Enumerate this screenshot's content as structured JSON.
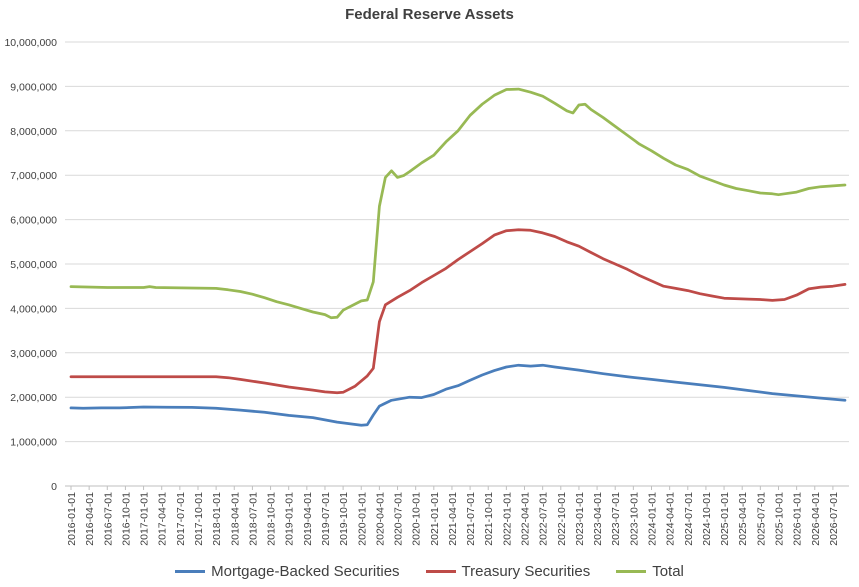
{
  "chart_data": {
    "type": "line",
    "title": "Federal Reserve Assets",
    "xlabel": "",
    "ylabel": "",
    "ylim": [
      0,
      10000000
    ],
    "y_ticks": [
      "0",
      "1,000,000",
      "2,000,000",
      "3,000,000",
      "4,000,000",
      "5,000,000",
      "6,000,000",
      "7,000,000",
      "8,000,000",
      "9,000,000",
      "10,000,000"
    ],
    "x_ticks": [
      "2016-01-01",
      "2016-04-01",
      "2016-07-01",
      "2016-10-01",
      "2017-01-01",
      "2017-04-01",
      "2017-07-01",
      "2017-10-01",
      "2018-01-01",
      "2018-04-01",
      "2018-07-01",
      "2018-10-01",
      "2019-01-01",
      "2019-04-01",
      "2019-07-01",
      "2019-10-01",
      "2020-01-01",
      "2020-04-01",
      "2020-07-01",
      "2020-10-01",
      "2021-01-01",
      "2021-04-01",
      "2021-07-01",
      "2021-10-01",
      "2022-01-01",
      "2022-04-01",
      "2022-07-01",
      "2022-10-01",
      "2023-01-01",
      "2023-04-01",
      "2023-07-01",
      "2023-10-01",
      "2024-01-01",
      "2024-04-01",
      "2024-07-01",
      "2024-10-01",
      "2025-01-01",
      "2025-04-01",
      "2025-07-01",
      "2025-10-01",
      "2026-01-01",
      "2026-04-01",
      "2026-07-01"
    ],
    "grid": true,
    "legend": "bottom",
    "series": [
      {
        "name": "Mortgage-Backed Securities",
        "color": "#4a7ebb",
        "points": [
          [
            0,
            1760000
          ],
          [
            2,
            1750000
          ],
          [
            5,
            1760000
          ],
          [
            8,
            1760000
          ],
          [
            12,
            1780000
          ],
          [
            16,
            1775000
          ],
          [
            20,
            1770000
          ],
          [
            24,
            1750000
          ],
          [
            28,
            1710000
          ],
          [
            32,
            1660000
          ],
          [
            36,
            1590000
          ],
          [
            40,
            1540000
          ],
          [
            44,
            1440000
          ],
          [
            48,
            1370000
          ],
          [
            49,
            1380000
          ],
          [
            50,
            1600000
          ],
          [
            51,
            1800000
          ],
          [
            53,
            1930000
          ],
          [
            56,
            2000000
          ],
          [
            58,
            1990000
          ],
          [
            60,
            2060000
          ],
          [
            62,
            2180000
          ],
          [
            64,
            2260000
          ],
          [
            66,
            2380000
          ],
          [
            68,
            2500000
          ],
          [
            70,
            2600000
          ],
          [
            72,
            2680000
          ],
          [
            74,
            2720000
          ],
          [
            76,
            2700000
          ],
          [
            78,
            2720000
          ],
          [
            80,
            2680000
          ],
          [
            84,
            2610000
          ],
          [
            88,
            2530000
          ],
          [
            92,
            2460000
          ],
          [
            96,
            2400000
          ],
          [
            100,
            2340000
          ],
          [
            104,
            2280000
          ],
          [
            108,
            2220000
          ],
          [
            112,
            2150000
          ],
          [
            116,
            2080000
          ],
          [
            120,
            2030000
          ],
          [
            124,
            1980000
          ],
          [
            128,
            1930000
          ]
        ]
      },
      {
        "name": "Treasury Securities",
        "color": "#be4b48",
        "points": [
          [
            0,
            2460000
          ],
          [
            12,
            2460000
          ],
          [
            24,
            2460000
          ],
          [
            26,
            2440000
          ],
          [
            28,
            2400000
          ],
          [
            32,
            2320000
          ],
          [
            36,
            2230000
          ],
          [
            40,
            2160000
          ],
          [
            42,
            2120000
          ],
          [
            44,
            2100000
          ],
          [
            45,
            2110000
          ],
          [
            47,
            2250000
          ],
          [
            49,
            2480000
          ],
          [
            50,
            2650000
          ],
          [
            51,
            3700000
          ],
          [
            52,
            4080000
          ],
          [
            54,
            4250000
          ],
          [
            56,
            4400000
          ],
          [
            58,
            4580000
          ],
          [
            60,
            4740000
          ],
          [
            62,
            4900000
          ],
          [
            64,
            5100000
          ],
          [
            66,
            5280000
          ],
          [
            68,
            5460000
          ],
          [
            70,
            5650000
          ],
          [
            72,
            5750000
          ],
          [
            74,
            5770000
          ],
          [
            76,
            5760000
          ],
          [
            78,
            5700000
          ],
          [
            80,
            5620000
          ],
          [
            82,
            5500000
          ],
          [
            84,
            5400000
          ],
          [
            86,
            5260000
          ],
          [
            88,
            5120000
          ],
          [
            90,
            5000000
          ],
          [
            92,
            4880000
          ],
          [
            94,
            4740000
          ],
          [
            96,
            4620000
          ],
          [
            98,
            4500000
          ],
          [
            100,
            4450000
          ],
          [
            102,
            4400000
          ],
          [
            104,
            4330000
          ],
          [
            106,
            4280000
          ],
          [
            108,
            4230000
          ],
          [
            112,
            4210000
          ],
          [
            114,
            4200000
          ],
          [
            116,
            4180000
          ],
          [
            118,
            4200000
          ],
          [
            120,
            4300000
          ],
          [
            122,
            4440000
          ],
          [
            124,
            4480000
          ],
          [
            126,
            4500000
          ],
          [
            128,
            4540000
          ]
        ]
      },
      {
        "name": "Total",
        "color": "#98b954",
        "points": [
          [
            0,
            4490000
          ],
          [
            6,
            4470000
          ],
          [
            12,
            4470000
          ],
          [
            13,
            4490000
          ],
          [
            14,
            4470000
          ],
          [
            24,
            4450000
          ],
          [
            26,
            4420000
          ],
          [
            28,
            4380000
          ],
          [
            30,
            4320000
          ],
          [
            32,
            4240000
          ],
          [
            34,
            4150000
          ],
          [
            36,
            4080000
          ],
          [
            38,
            4000000
          ],
          [
            40,
            3920000
          ],
          [
            42,
            3860000
          ],
          [
            43,
            3790000
          ],
          [
            44,
            3800000
          ],
          [
            45,
            3960000
          ],
          [
            47,
            4100000
          ],
          [
            48,
            4170000
          ],
          [
            49,
            4190000
          ],
          [
            50,
            4600000
          ],
          [
            51,
            6300000
          ],
          [
            52,
            6950000
          ],
          [
            53,
            7100000
          ],
          [
            54,
            6950000
          ],
          [
            55,
            6990000
          ],
          [
            56,
            7080000
          ],
          [
            58,
            7280000
          ],
          [
            60,
            7450000
          ],
          [
            62,
            7750000
          ],
          [
            64,
            8000000
          ],
          [
            66,
            8350000
          ],
          [
            68,
            8600000
          ],
          [
            70,
            8800000
          ],
          [
            72,
            8930000
          ],
          [
            74,
            8940000
          ],
          [
            76,
            8870000
          ],
          [
            78,
            8780000
          ],
          [
            80,
            8620000
          ],
          [
            82,
            8450000
          ],
          [
            83,
            8400000
          ],
          [
            84,
            8580000
          ],
          [
            85,
            8600000
          ],
          [
            86,
            8480000
          ],
          [
            88,
            8300000
          ],
          [
            90,
            8100000
          ],
          [
            92,
            7900000
          ],
          [
            94,
            7700000
          ],
          [
            96,
            7550000
          ],
          [
            98,
            7380000
          ],
          [
            100,
            7230000
          ],
          [
            102,
            7130000
          ],
          [
            104,
            6980000
          ],
          [
            106,
            6880000
          ],
          [
            108,
            6780000
          ],
          [
            110,
            6700000
          ],
          [
            112,
            6650000
          ],
          [
            114,
            6600000
          ],
          [
            116,
            6580000
          ],
          [
            117,
            6560000
          ],
          [
            118,
            6580000
          ],
          [
            120,
            6620000
          ],
          [
            122,
            6700000
          ],
          [
            124,
            6740000
          ],
          [
            126,
            6760000
          ],
          [
            128,
            6780000
          ]
        ]
      }
    ]
  }
}
